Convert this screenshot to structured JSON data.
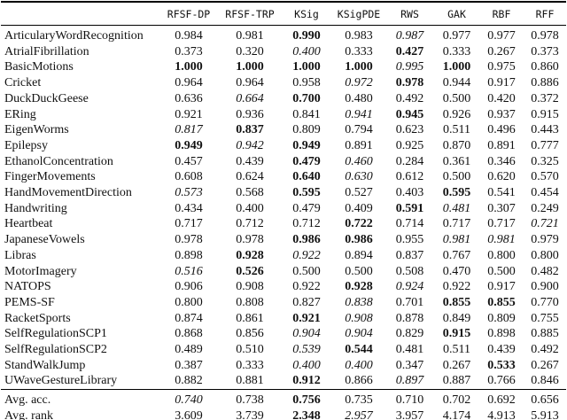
{
  "colors": {
    "background": "#ffffff",
    "text": "#111111",
    "rule": "#000000"
  },
  "table": {
    "columns": [
      "RFSF-DP",
      "RFSF-TRP",
      "KSig",
      "KSigPDE",
      "RWS",
      "GAK",
      "RBF",
      "RFF"
    ],
    "style_legend": {
      "b": "bold-best",
      "i": "italic-second-best",
      "n": "normal"
    },
    "rows": [
      {
        "name": "ArticularyWordRecognition",
        "values": [
          "0.984",
          "0.981",
          "0.990",
          "0.983",
          "0.987",
          "0.977",
          "0.977",
          "0.978"
        ],
        "styles": [
          "n",
          "n",
          "b",
          "n",
          "i",
          "n",
          "n",
          "n"
        ]
      },
      {
        "name": "AtrialFibrillation",
        "values": [
          "0.373",
          "0.320",
          "0.400",
          "0.333",
          "0.427",
          "0.333",
          "0.267",
          "0.373"
        ],
        "styles": [
          "n",
          "n",
          "i",
          "n",
          "b",
          "n",
          "n",
          "n"
        ]
      },
      {
        "name": "BasicMotions",
        "values": [
          "1.000",
          "1.000",
          "1.000",
          "1.000",
          "0.995",
          "1.000",
          "0.975",
          "0.860"
        ],
        "styles": [
          "b",
          "b",
          "b",
          "b",
          "i",
          "b",
          "n",
          "n"
        ]
      },
      {
        "name": "Cricket",
        "values": [
          "0.964",
          "0.964",
          "0.958",
          "0.972",
          "0.978",
          "0.944",
          "0.917",
          "0.886"
        ],
        "styles": [
          "n",
          "n",
          "n",
          "i",
          "b",
          "n",
          "n",
          "n"
        ]
      },
      {
        "name": "DuckDuckGeese",
        "values": [
          "0.636",
          "0.664",
          "0.700",
          "0.480",
          "0.492",
          "0.500",
          "0.420",
          "0.372"
        ],
        "styles": [
          "n",
          "i",
          "b",
          "n",
          "n",
          "n",
          "n",
          "n"
        ]
      },
      {
        "name": "ERing",
        "values": [
          "0.921",
          "0.936",
          "0.841",
          "0.941",
          "0.945",
          "0.926",
          "0.937",
          "0.915"
        ],
        "styles": [
          "n",
          "n",
          "n",
          "i",
          "b",
          "n",
          "n",
          "n"
        ]
      },
      {
        "name": "EigenWorms",
        "values": [
          "0.817",
          "0.837",
          "0.809",
          "0.794",
          "0.623",
          "0.511",
          "0.496",
          "0.443"
        ],
        "styles": [
          "i",
          "b",
          "n",
          "n",
          "n",
          "n",
          "n",
          "n"
        ]
      },
      {
        "name": "Epilepsy",
        "values": [
          "0.949",
          "0.942",
          "0.949",
          "0.891",
          "0.925",
          "0.870",
          "0.891",
          "0.777"
        ],
        "styles": [
          "b",
          "i",
          "b",
          "n",
          "n",
          "n",
          "n",
          "n"
        ]
      },
      {
        "name": "EthanolConcentration",
        "values": [
          "0.457",
          "0.439",
          "0.479",
          "0.460",
          "0.284",
          "0.361",
          "0.346",
          "0.325"
        ],
        "styles": [
          "n",
          "n",
          "b",
          "i",
          "n",
          "n",
          "n",
          "n"
        ]
      },
      {
        "name": "FingerMovements",
        "values": [
          "0.608",
          "0.624",
          "0.640",
          "0.630",
          "0.612",
          "0.500",
          "0.620",
          "0.570"
        ],
        "styles": [
          "n",
          "n",
          "b",
          "i",
          "n",
          "n",
          "n",
          "n"
        ]
      },
      {
        "name": "HandMovementDirection",
        "values": [
          "0.573",
          "0.568",
          "0.595",
          "0.527",
          "0.403",
          "0.595",
          "0.541",
          "0.454"
        ],
        "styles": [
          "i",
          "n",
          "b",
          "n",
          "n",
          "b",
          "n",
          "n"
        ]
      },
      {
        "name": "Handwriting",
        "values": [
          "0.434",
          "0.400",
          "0.479",
          "0.409",
          "0.591",
          "0.481",
          "0.307",
          "0.249"
        ],
        "styles": [
          "n",
          "n",
          "n",
          "n",
          "b",
          "i",
          "n",
          "n"
        ]
      },
      {
        "name": "Heartbeat",
        "values": [
          "0.717",
          "0.712",
          "0.712",
          "0.722",
          "0.714",
          "0.717",
          "0.717",
          "0.721"
        ],
        "styles": [
          "n",
          "n",
          "n",
          "b",
          "n",
          "n",
          "n",
          "i"
        ]
      },
      {
        "name": "JapaneseVowels",
        "values": [
          "0.978",
          "0.978",
          "0.986",
          "0.986",
          "0.955",
          "0.981",
          "0.981",
          "0.979"
        ],
        "styles": [
          "n",
          "n",
          "b",
          "b",
          "n",
          "i",
          "i",
          "n"
        ]
      },
      {
        "name": "Libras",
        "values": [
          "0.898",
          "0.928",
          "0.922",
          "0.894",
          "0.837",
          "0.767",
          "0.800",
          "0.800"
        ],
        "styles": [
          "n",
          "b",
          "i",
          "n",
          "n",
          "n",
          "n",
          "n"
        ]
      },
      {
        "name": "MotorImagery",
        "values": [
          "0.516",
          "0.526",
          "0.500",
          "0.500",
          "0.508",
          "0.470",
          "0.500",
          "0.482"
        ],
        "styles": [
          "i",
          "b",
          "n",
          "n",
          "n",
          "n",
          "n",
          "n"
        ]
      },
      {
        "name": "NATOPS",
        "values": [
          "0.906",
          "0.908",
          "0.922",
          "0.928",
          "0.924",
          "0.922",
          "0.917",
          "0.900"
        ],
        "styles": [
          "n",
          "n",
          "n",
          "b",
          "i",
          "n",
          "n",
          "n"
        ]
      },
      {
        "name": "PEMS-SF",
        "values": [
          "0.800",
          "0.808",
          "0.827",
          "0.838",
          "0.701",
          "0.855",
          "0.855",
          "0.770"
        ],
        "styles": [
          "n",
          "n",
          "n",
          "i",
          "n",
          "b",
          "b",
          "n"
        ]
      },
      {
        "name": "RacketSports",
        "values": [
          "0.874",
          "0.861",
          "0.921",
          "0.908",
          "0.878",
          "0.849",
          "0.809",
          "0.755"
        ],
        "styles": [
          "n",
          "n",
          "b",
          "i",
          "n",
          "n",
          "n",
          "n"
        ]
      },
      {
        "name": "SelfRegulationSCP1",
        "values": [
          "0.868",
          "0.856",
          "0.904",
          "0.904",
          "0.829",
          "0.915",
          "0.898",
          "0.885"
        ],
        "styles": [
          "n",
          "n",
          "i",
          "i",
          "n",
          "b",
          "n",
          "n"
        ]
      },
      {
        "name": "SelfRegulationSCP2",
        "values": [
          "0.489",
          "0.510",
          "0.539",
          "0.544",
          "0.481",
          "0.511",
          "0.439",
          "0.492"
        ],
        "styles": [
          "n",
          "n",
          "i",
          "b",
          "n",
          "n",
          "n",
          "n"
        ]
      },
      {
        "name": "StandWalkJump",
        "values": [
          "0.387",
          "0.333",
          "0.400",
          "0.400",
          "0.347",
          "0.267",
          "0.533",
          "0.267"
        ],
        "styles": [
          "n",
          "n",
          "i",
          "i",
          "n",
          "n",
          "b",
          "n"
        ]
      },
      {
        "name": "UWaveGestureLibrary",
        "values": [
          "0.882",
          "0.881",
          "0.912",
          "0.866",
          "0.897",
          "0.887",
          "0.766",
          "0.846"
        ],
        "styles": [
          "n",
          "n",
          "b",
          "n",
          "i",
          "n",
          "n",
          "n"
        ]
      }
    ],
    "summary_rows": [
      {
        "name": "Avg. acc.",
        "values": [
          "0.740",
          "0.738",
          "0.756",
          "0.735",
          "0.710",
          "0.702",
          "0.692",
          "0.656"
        ],
        "styles": [
          "i",
          "n",
          "b",
          "n",
          "n",
          "n",
          "n",
          "n"
        ]
      },
      {
        "name": "Avg. rank",
        "values": [
          "3.609",
          "3.739",
          "2.348",
          "2.957",
          "3.957",
          "4.174",
          "4.913",
          "5.913"
        ],
        "styles": [
          "n",
          "n",
          "b",
          "i",
          "n",
          "n",
          "n",
          "n"
        ]
      }
    ]
  }
}
